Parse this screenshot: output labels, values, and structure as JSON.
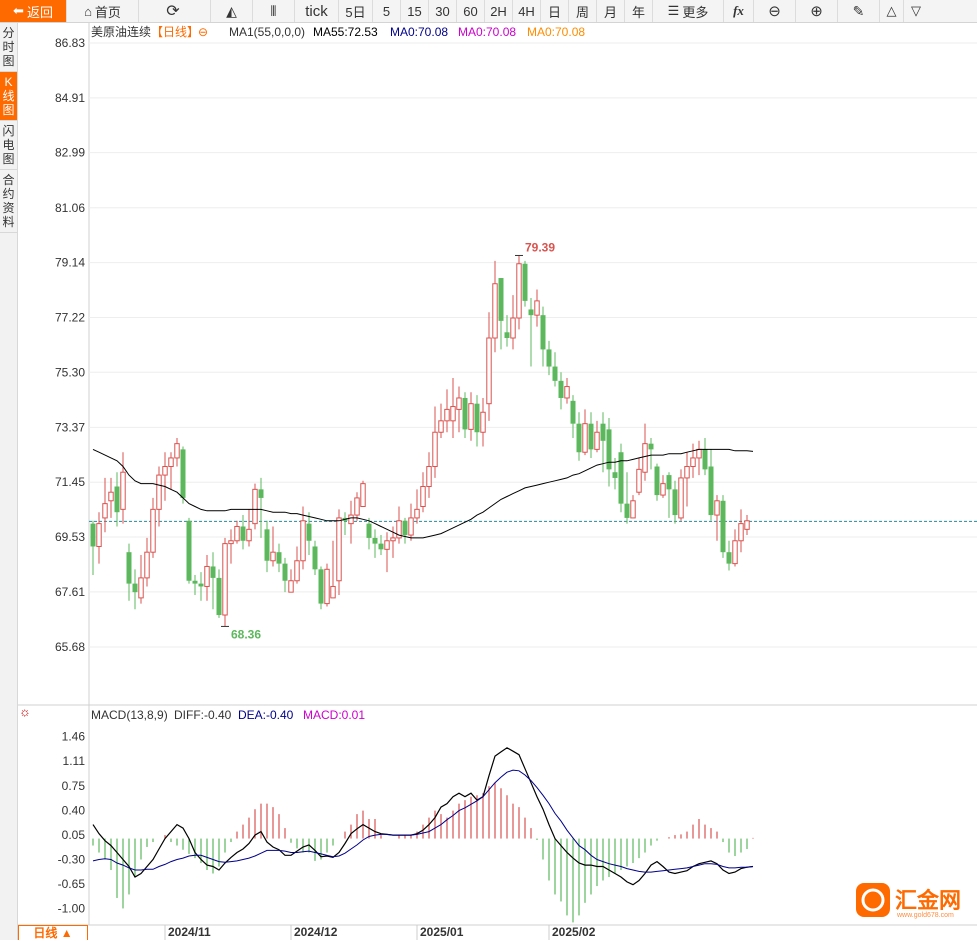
{
  "toolbar": {
    "back": "返回",
    "home": "首页",
    "tick": "tick",
    "day5": "5日",
    "p5": "5",
    "p15": "15",
    "p30": "30",
    "p60": "60",
    "p2h": "2H",
    "p4h": "4H",
    "day": "日",
    "week": "周",
    "month": "月",
    "year": "年",
    "more": "更多",
    "fx": "fx"
  },
  "sidebar": [
    "分时图",
    "K线图",
    "闪电图",
    "合约资料"
  ],
  "bottom_tab": "日线 ▲",
  "watermark": "汇金网",
  "watermark_url": "www.gold678.com",
  "colors": {
    "up": "#d9534f",
    "down": "#5cb85c",
    "ma55": "#000000",
    "dea": "#00008b",
    "macd_label": "#cc00cc",
    "ma_orange": "#ff8c00",
    "accent": "#ff6a00"
  },
  "chart_data": {
    "type": "candlestick",
    "price_panel": {
      "legend": {
        "title": "美原油连续",
        "period": "【日线】",
        "ma1": "MA1(55,0,0,0)",
        "ma55": "MA55:72.53",
        "ma_a": "MA0:70.08",
        "ma_b": "MA0:70.08",
        "ma_c": "MA0:70.08"
      },
      "y_ticks": [
        "86.83",
        "84.91",
        "82.99",
        "81.06",
        "79.14",
        "77.22",
        "75.30",
        "73.37",
        "71.45",
        "69.53",
        "67.61",
        "65.68"
      ],
      "ylim": [
        65.68,
        86.83
      ],
      "high_label": "79.39",
      "low_label": "68.36",
      "last_price": 70.08,
      "candles": [
        [
          70.0,
          69.2,
          70.1,
          68.2
        ],
        [
          69.2,
          70.0,
          70.4,
          68.6
        ],
        [
          70.2,
          70.7,
          71.6,
          69.7
        ],
        [
          70.8,
          71.1,
          71.6,
          70.2
        ],
        [
          71.3,
          70.4,
          71.8,
          69.9
        ],
        [
          70.5,
          71.8,
          72.5,
          70.0
        ],
        [
          69.0,
          67.9,
          69.3,
          67.3
        ],
        [
          67.9,
          67.6,
          68.4,
          67.0
        ],
        [
          67.4,
          68.1,
          68.9,
          67.2
        ],
        [
          68.1,
          69.0,
          69.5,
          67.8
        ],
        [
          69.0,
          70.5,
          70.9,
          68.8
        ],
        [
          70.5,
          71.7,
          72.0,
          69.9
        ],
        [
          71.7,
          72.0,
          72.5,
          70.8
        ],
        [
          72.0,
          72.3,
          72.5,
          71.2
        ],
        [
          72.3,
          72.8,
          73.0,
          72.0
        ],
        [
          72.6,
          70.9,
          72.7,
          70.7
        ],
        [
          70.1,
          68.0,
          70.2,
          67.9
        ],
        [
          68.0,
          67.9,
          68.2,
          67.5
        ],
        [
          67.9,
          67.8,
          68.3,
          67.3
        ],
        [
          67.8,
          68.5,
          68.9,
          67.3
        ],
        [
          68.5,
          68.1,
          69.0,
          67.0
        ],
        [
          68.1,
          66.8,
          68.4,
          66.7
        ],
        [
          66.8,
          69.3,
          69.5,
          66.4
        ],
        [
          69.3,
          69.4,
          69.8,
          68.6
        ],
        [
          69.4,
          69.9,
          70.1,
          69.3
        ],
        [
          69.9,
          69.4,
          70.3,
          69.1
        ],
        [
          69.4,
          69.8,
          70.5,
          69.2
        ],
        [
          70.0,
          71.2,
          71.4,
          69.8
        ],
        [
          71.2,
          70.9,
          71.6,
          69.5
        ],
        [
          69.8,
          68.7,
          70.1,
          68.3
        ],
        [
          68.7,
          69.0,
          69.9,
          68.5
        ],
        [
          69.0,
          68.6,
          69.3,
          68.3
        ],
        [
          68.6,
          68.0,
          68.8,
          67.6
        ],
        [
          67.6,
          68.0,
          68.4,
          67.6
        ],
        [
          68.0,
          68.7,
          69.2,
          67.9
        ],
        [
          68.7,
          70.1,
          70.6,
          68.4
        ],
        [
          70.0,
          69.4,
          70.4,
          68.9
        ],
        [
          69.2,
          68.4,
          69.4,
          68.2
        ],
        [
          68.4,
          67.2,
          68.5,
          67.0
        ],
        [
          67.2,
          68.4,
          68.6,
          67.1
        ],
        [
          67.4,
          67.8,
          69.4,
          67.4
        ],
        [
          68.0,
          70.2,
          70.5,
          67.5
        ],
        [
          70.2,
          70.1,
          70.4,
          69.6
        ],
        [
          70.0,
          70.3,
          70.8,
          69.3
        ],
        [
          70.3,
          70.9,
          71.1,
          70.1
        ],
        [
          70.6,
          71.4,
          71.5,
          70.6
        ],
        [
          70.0,
          69.5,
          70.2,
          69.1
        ],
        [
          69.5,
          69.3,
          69.8,
          68.8
        ],
        [
          69.3,
          69.1,
          69.6,
          68.9
        ],
        [
          69.1,
          69.4,
          69.7,
          68.3
        ],
        [
          69.4,
          69.5,
          69.9,
          68.8
        ],
        [
          69.5,
          70.1,
          70.6,
          69.3
        ],
        [
          70.1,
          69.6,
          70.2,
          69.3
        ],
        [
          69.6,
          70.2,
          70.7,
          69.4
        ],
        [
          70.2,
          70.5,
          71.2,
          70.0
        ],
        [
          70.6,
          71.3,
          71.8,
          70.4
        ],
        [
          71.3,
          72.0,
          72.5,
          70.9
        ],
        [
          72.0,
          73.2,
          74.1,
          71.6
        ],
        [
          73.2,
          73.6,
          74.2,
          73.0
        ],
        [
          73.6,
          74.0,
          74.7,
          73.2
        ],
        [
          73.6,
          74.1,
          75.1,
          73.0
        ],
        [
          74.0,
          74.4,
          74.8,
          73.2
        ],
        [
          74.4,
          73.3,
          74.6,
          73.0
        ],
        [
          73.3,
          74.2,
          74.6,
          72.9
        ],
        [
          74.2,
          73.2,
          74.5,
          72.7
        ],
        [
          73.2,
          73.9,
          74.4,
          72.7
        ],
        [
          74.2,
          76.5,
          77.4,
          73.6
        ],
        [
          76.5,
          78.4,
          79.2,
          76.0
        ],
        [
          78.6,
          77.1,
          78.6,
          76.1
        ],
        [
          76.7,
          76.5,
          77.3,
          76.2
        ],
        [
          76.5,
          77.2,
          78.0,
          76.1
        ],
        [
          77.2,
          79.1,
          79.39,
          76.8
        ],
        [
          79.1,
          77.8,
          79.2,
          77.6
        ],
        [
          77.5,
          77.3,
          77.9,
          75.5
        ],
        [
          77.3,
          77.8,
          78.2,
          76.9
        ],
        [
          77.3,
          76.1,
          77.6,
          75.5
        ],
        [
          76.1,
          75.5,
          76.4,
          75.2
        ],
        [
          75.5,
          75.0,
          76.0,
          74.8
        ],
        [
          75.0,
          74.4,
          75.3,
          74.0
        ],
        [
          74.4,
          74.8,
          75.1,
          74.2
        ],
        [
          74.3,
          73.5,
          74.5,
          73.0
        ],
        [
          73.5,
          72.5,
          73.9,
          72.2
        ],
        [
          72.5,
          73.5,
          74.0,
          72.4
        ],
        [
          73.5,
          72.6,
          73.9,
          72.3
        ],
        [
          72.6,
          73.2,
          73.6,
          72.5
        ],
        [
          73.5,
          72.9,
          73.9,
          71.8
        ],
        [
          73.3,
          71.9,
          73.7,
          71.3
        ],
        [
          71.8,
          71.6,
          72.3,
          71.2
        ],
        [
          72.5,
          70.7,
          72.8,
          70.4
        ],
        [
          70.7,
          70.2,
          71.8,
          70.0
        ],
        [
          70.2,
          70.8,
          71.0,
          70.2
        ],
        [
          71.1,
          71.9,
          72.3,
          71.0
        ],
        [
          71.8,
          72.8,
          73.5,
          71.5
        ],
        [
          72.8,
          72.6,
          73.0,
          71.9
        ],
        [
          72.0,
          71.0,
          72.1,
          70.8
        ],
        [
          71.0,
          71.4,
          71.7,
          70.9
        ],
        [
          71.7,
          71.2,
          71.8,
          70.2
        ],
        [
          71.2,
          70.3,
          71.5,
          70.0
        ],
        [
          70.2,
          71.6,
          71.9,
          70.1
        ],
        [
          71.6,
          72.0,
          72.5,
          70.6
        ],
        [
          72.0,
          72.3,
          72.8,
          71.6
        ],
        [
          72.3,
          72.6,
          72.9,
          71.7
        ],
        [
          72.6,
          71.9,
          73.0,
          71.7
        ],
        [
          72.0,
          70.3,
          72.6,
          70.1
        ],
        [
          70.3,
          70.8,
          71.0,
          69.4
        ],
        [
          70.8,
          69.0,
          71.0,
          68.8
        ],
        [
          69.0,
          68.6,
          69.4,
          68.36
        ],
        [
          68.6,
          69.4,
          69.8,
          68.5
        ],
        [
          69.4,
          70.0,
          70.5,
          69.0
        ],
        [
          69.8,
          70.1,
          70.3,
          69.6
        ]
      ],
      "ma55": [
        72.6,
        72.5,
        72.4,
        72.3,
        72.2,
        72.0,
        71.7,
        71.5,
        71.4,
        71.4,
        71.4,
        71.35,
        71.3,
        71.2,
        71.1,
        70.9,
        70.7,
        70.6,
        70.5,
        70.45,
        70.45,
        70.45,
        70.45,
        70.5,
        70.5,
        70.5,
        70.5,
        70.5,
        70.5,
        70.45,
        70.4,
        70.4,
        70.4,
        70.35,
        70.35,
        70.3,
        70.25,
        70.2,
        70.15,
        70.1,
        70.1,
        70.1,
        70.15,
        70.2,
        70.2,
        70.15,
        70.1,
        70.0,
        69.9,
        69.8,
        69.7,
        69.6,
        69.55,
        69.5,
        69.5,
        69.5,
        69.55,
        69.6,
        69.65,
        69.75,
        69.85,
        69.95,
        70.05,
        70.15,
        70.3,
        70.4,
        70.55,
        70.7,
        70.85,
        70.95,
        71.05,
        71.15,
        71.25,
        71.3,
        71.35,
        71.4,
        71.45,
        71.5,
        71.55,
        71.6,
        71.7,
        71.75,
        71.85,
        71.95,
        72.05,
        72.1,
        72.15,
        72.15,
        72.2,
        72.2,
        72.25,
        72.3,
        72.35,
        72.4,
        72.4,
        72.4,
        72.45,
        72.45,
        72.45,
        72.5,
        72.55,
        72.6,
        72.6,
        72.6,
        72.6,
        72.6,
        72.6,
        72.55,
        72.55,
        72.55,
        72.53
      ]
    },
    "macd_panel": {
      "legend": {
        "title": "MACD(13,8,9)",
        "diff": "DIFF:-0.40",
        "dea": "DEA:-0.40",
        "macd": "MACD:0.01"
      },
      "y_ticks": [
        "1.46",
        "1.11",
        "0.75",
        "0.40",
        "0.05",
        "-0.30",
        "-0.65",
        "-1.00"
      ],
      "ylim": [
        -1.18,
        1.64
      ],
      "diff": [
        0.2,
        0.07,
        -0.03,
        -0.1,
        -0.2,
        -0.3,
        -0.4,
        -0.55,
        -0.5,
        -0.4,
        -0.3,
        -0.15,
        0.0,
        0.1,
        0.2,
        0.15,
        0.0,
        -0.2,
        -0.3,
        -0.38,
        -0.4,
        -0.45,
        -0.35,
        -0.27,
        -0.2,
        -0.15,
        -0.07,
        0.05,
        0.1,
        -0.05,
        -0.12,
        -0.16,
        -0.24,
        -0.24,
        -0.18,
        -0.12,
        -0.09,
        -0.17,
        -0.26,
        -0.25,
        -0.27,
        -0.2,
        -0.07,
        0.07,
        0.14,
        0.2,
        0.15,
        0.1,
        0.07,
        0.06,
        0.05,
        0.05,
        0.05,
        0.05,
        0.07,
        0.12,
        0.2,
        0.3,
        0.45,
        0.5,
        0.6,
        0.65,
        0.6,
        0.65,
        0.55,
        0.6,
        0.9,
        1.18,
        1.24,
        1.3,
        1.25,
        1.2,
        1.0,
        0.8,
        0.6,
        0.42,
        0.2,
        0.0,
        -0.1,
        -0.2,
        -0.28,
        -0.35,
        -0.38,
        -0.38,
        -0.4,
        -0.4,
        -0.45,
        -0.5,
        -0.55,
        -0.62,
        -0.66,
        -0.6,
        -0.5,
        -0.38,
        -0.33,
        -0.4,
        -0.48,
        -0.5,
        -0.48,
        -0.46,
        -0.4,
        -0.36,
        -0.34,
        -0.32,
        -0.36,
        -0.45,
        -0.5,
        -0.48,
        -0.43,
        -0.41,
        -0.4
      ],
      "dea": [
        -0.32,
        -0.3,
        -0.29,
        -0.3,
        -0.35,
        -0.38,
        -0.42,
        -0.45,
        -0.45,
        -0.44,
        -0.44,
        -0.4,
        -0.37,
        -0.33,
        -0.3,
        -0.28,
        -0.25,
        -0.24,
        -0.24,
        -0.27,
        -0.3,
        -0.33,
        -0.34,
        -0.33,
        -0.32,
        -0.3,
        -0.28,
        -0.25,
        -0.21,
        -0.17,
        -0.17,
        -0.17,
        -0.18,
        -0.2,
        -0.2,
        -0.19,
        -0.18,
        -0.2,
        -0.22,
        -0.24,
        -0.26,
        -0.25,
        -0.21,
        -0.15,
        -0.09,
        -0.02,
        0.03,
        0.05,
        0.06,
        0.06,
        0.05,
        0.05,
        0.05,
        0.05,
        0.06,
        0.08,
        0.1,
        0.15,
        0.2,
        0.27,
        0.33,
        0.4,
        0.44,
        0.49,
        0.54,
        0.6,
        0.7,
        0.8,
        0.88,
        0.95,
        0.98,
        0.97,
        0.91,
        0.83,
        0.73,
        0.62,
        0.5,
        0.36,
        0.25,
        0.12,
        0.01,
        -0.1,
        -0.16,
        -0.24,
        -0.3,
        -0.33,
        -0.36,
        -0.38,
        -0.4,
        -0.43,
        -0.45,
        -0.47,
        -0.48,
        -0.48,
        -0.47,
        -0.46,
        -0.45,
        -0.44,
        -0.43,
        -0.42,
        -0.4,
        -0.38,
        -0.36,
        -0.36,
        -0.37,
        -0.4,
        -0.42,
        -0.42,
        -0.41,
        -0.41,
        -0.4
      ],
      "macd": [
        -0.1,
        -0.2,
        -0.3,
        -0.45,
        -0.85,
        -1.0,
        -0.8,
        -0.55,
        -0.3,
        -0.12,
        -0.05,
        0.0,
        0.05,
        -0.05,
        -0.1,
        -0.16,
        -0.22,
        -0.28,
        -0.35,
        -0.45,
        -0.5,
        -0.4,
        -0.2,
        -0.05,
        0.1,
        0.2,
        0.3,
        0.42,
        0.5,
        0.5,
        0.45,
        0.35,
        0.15,
        -0.06,
        -0.14,
        -0.2,
        -0.2,
        -0.32,
        -0.3,
        -0.2,
        -0.1,
        0.0,
        0.1,
        0.2,
        0.35,
        0.4,
        0.28,
        0.28,
        0.05,
        0.0,
        0.0,
        0.05,
        0.05,
        0.06,
        0.1,
        0.2,
        0.3,
        0.4,
        0.35,
        0.3,
        0.4,
        0.5,
        0.55,
        0.6,
        0.62,
        0.65,
        0.75,
        0.8,
        0.72,
        0.62,
        0.5,
        0.45,
        0.3,
        0.15,
        -0.02,
        -0.3,
        -0.6,
        -0.8,
        -0.9,
        -1.1,
        -1.2,
        -1.1,
        -0.92,
        -0.8,
        -0.68,
        -0.6,
        -0.55,
        -0.5,
        -0.45,
        -0.4,
        -0.35,
        -0.28,
        -0.2,
        -0.1,
        -0.03,
        0.0,
        0.02,
        0.05,
        0.06,
        0.1,
        0.2,
        0.28,
        0.2,
        0.15,
        0.1,
        -0.05,
        -0.2,
        -0.25,
        -0.2,
        -0.15,
        0.01
      ]
    },
    "x_ticks": [
      {
        "label": "2024/11",
        "index": 13
      },
      {
        "label": "2024/12",
        "index": 34
      },
      {
        "label": "2025/01",
        "index": 55
      },
      {
        "label": "2025/02",
        "index": 77
      }
    ]
  }
}
